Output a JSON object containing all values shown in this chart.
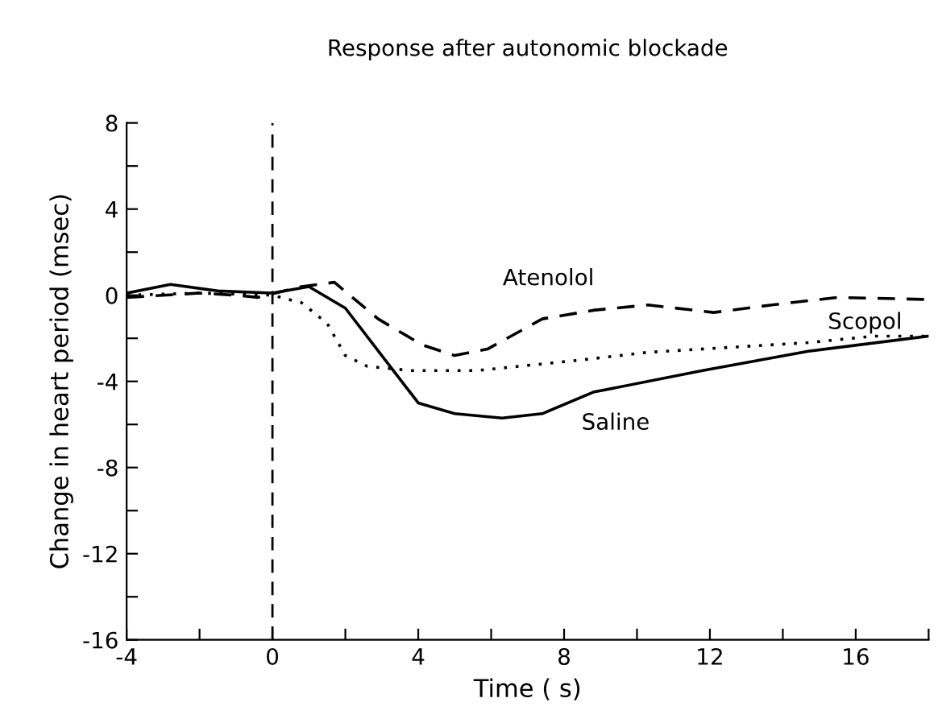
{
  "chart_data": {
    "type": "line",
    "title": "Response after autonomic blockade",
    "xlabel": "Time ( s)",
    "ylabel": "Change in heart period (msec)",
    "xlim": [
      -4,
      18
    ],
    "ylim": [
      -16,
      8
    ],
    "xticks": [
      -4,
      {
        "value": -2,
        "label": null
      },
      0,
      {
        "value": 2,
        "label": null
      },
      4,
      {
        "value": 6,
        "label": null
      },
      8,
      {
        "value": 10,
        "label": null
      },
      12,
      {
        "value": 14,
        "label": null
      },
      16,
      {
        "value": 18,
        "label": null
      }
    ],
    "yticks": [
      -16,
      {
        "value": -14,
        "label": null
      },
      -12,
      {
        "value": -10,
        "label": null
      },
      -8,
      {
        "value": -6,
        "label": null
      },
      -4,
      {
        "value": -2,
        "label": null
      },
      0,
      {
        "value": 2,
        "label": null
      },
      4,
      {
        "value": 6,
        "label": null
      },
      8
    ],
    "grid": false,
    "legend": false,
    "marker": "none",
    "series": [
      {
        "name": "Saline",
        "color": "#000000",
        "line_style": "solid",
        "x": [
          -4,
          -2.8,
          -1.5,
          0,
          1.0,
          2.0,
          4.0,
          5.0,
          6.3,
          7.4,
          8.8,
          11.8,
          14.7,
          18
        ],
        "values": [
          0.1,
          0.5,
          0.2,
          0.1,
          0.4,
          -0.6,
          -5.0,
          -5.5,
          -5.7,
          -5.5,
          -4.5,
          -3.5,
          -2.6,
          -1.9
        ]
      },
      {
        "name": "Atenolol",
        "color": "#000000",
        "line_style": "dashed",
        "x": [
          -4,
          -3,
          -2,
          -1,
          -0.4,
          0.8,
          1.7,
          2.9,
          4.1,
          5.0,
          5.9,
          7.4,
          8.8,
          10.3,
          12.1,
          13.7,
          15.5,
          18
        ],
        "values": [
          -0.1,
          0,
          0.1,
          0,
          -0.1,
          0.4,
          0.6,
          -1.1,
          -2.3,
          -2.8,
          -2.5,
          -1.1,
          -0.7,
          -0.45,
          -0.8,
          -0.45,
          -0.1,
          -0.2
        ]
      },
      {
        "name": "Scopol",
        "color": "#000000",
        "line_style": "dotted",
        "x": [
          -4,
          -2,
          0,
          0.8,
          1.5,
          2.0,
          2.6,
          3.8,
          5.6,
          8.5,
          10.3,
          14.7,
          16.5,
          18
        ],
        "values": [
          0,
          0.1,
          0,
          -0.35,
          -1.3,
          -2.8,
          -3.3,
          -3.5,
          -3.5,
          -3.0,
          -2.65,
          -2.2,
          -1.9,
          -1.9
        ]
      }
    ],
    "ref_lines": [
      {
        "axis": "x",
        "value": 0,
        "color": "#000000",
        "line_style": "dashed"
      }
    ]
  }
}
